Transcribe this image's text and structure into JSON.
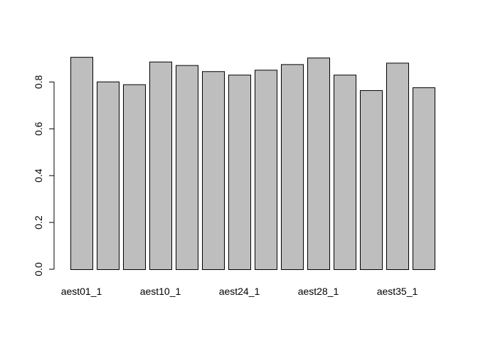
{
  "chart_data": {
    "type": "bar",
    "title": "",
    "xlabel": "",
    "ylabel": "",
    "categories": [
      "aest01_1",
      "",
      "",
      "aest10_1",
      "",
      "",
      "aest24_1",
      "",
      "",
      "aest28_1",
      "",
      "",
      "aest35_1",
      ""
    ],
    "values": [
      0.907,
      0.802,
      0.79,
      0.887,
      0.872,
      0.846,
      0.831,
      0.852,
      0.876,
      0.904,
      0.831,
      0.765,
      0.882,
      0.777
    ],
    "ylim": [
      0,
      0.92
    ],
    "yticks": [
      0.0,
      0.2,
      0.4,
      0.6,
      0.8
    ],
    "ytick_labels": [
      "0.0",
      "0.2",
      "0.4",
      "0.6",
      "0.8"
    ],
    "xtick_labels": [
      "aest01_1",
      "aest10_1",
      "aest24_1",
      "aest28_1",
      "aest35_1"
    ],
    "grid": false,
    "legend": "none",
    "colors": {
      "bar_fill": "#bebebe",
      "bar_stroke": "#000000",
      "axis": "#000000"
    }
  }
}
